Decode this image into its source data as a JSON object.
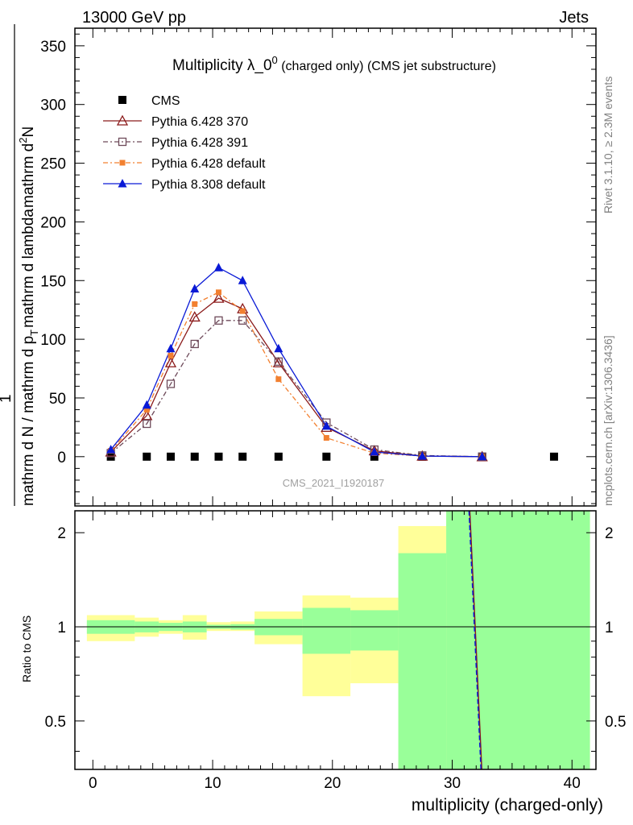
{
  "header": {
    "left": "13000 GeV pp",
    "right": "Jets"
  },
  "title": {
    "main": "Multiplicity λ_0",
    "sup": "0",
    "suffix": " (charged only) (CMS jet substructure)"
  },
  "watermark": "CMS_2021_I1920187",
  "side_labels": {
    "rivet": "Rivet 3.1.10, ≥ 2.3M events",
    "mcplots": "mcplots.cern.ch [arXiv:1306.3436]"
  },
  "ylabel_top": {
    "numer_pre": "1",
    "denom": "mathrm d N / mathrm d p",
    "denom_sub": "T",
    "denom_post": "mathrm d lambda",
    "numer_main": "mathrm d",
    "numer_sup": "2",
    "numer_N": "N",
    "numer_den": "mathrm d p",
    "numer_den_sub": "T",
    "numer_den_post": "mathrm d lambda"
  },
  "ylabel_ratio": "Ratio to CMS",
  "xlabel": "multiplicity (charged-only)",
  "colors": {
    "cms": "#000000",
    "p370": "#8b1a1a",
    "p391": "#6e4a5a",
    "p6def": "#f28030",
    "p8def": "#0a1ad6",
    "band_green": "#99ff99",
    "band_yellow": "#ffff99"
  },
  "chart_data": [
    {
      "type": "line",
      "xlim": [
        -1.5,
        42
      ],
      "ylim": [
        -42,
        365
      ],
      "yticks": [
        0,
        50,
        100,
        150,
        200,
        250,
        300,
        350
      ],
      "xticks": [
        0,
        10,
        20,
        30,
        40
      ],
      "legend_position": "top-left",
      "series": [
        {
          "name": "CMS",
          "marker": "square",
          "x": [
            1.5,
            4.5,
            6.5,
            8.5,
            10.5,
            12.5,
            15.5,
            19.5,
            23.5,
            27.5,
            32.5,
            38.5
          ],
          "y": [
            0,
            0,
            0,
            0,
            0,
            0,
            0,
            0,
            0,
            0,
            0,
            0
          ]
        },
        {
          "name": "Pythia 6.428 370",
          "marker": "open-triangle",
          "x": [
            1.5,
            4.5,
            6.5,
            8.5,
            10.5,
            12.5,
            15.5,
            19.5,
            23.5,
            27.5,
            32.5
          ],
          "y": [
            4,
            35,
            80,
            119,
            135,
            126,
            80,
            25,
            5,
            0.5,
            0
          ]
        },
        {
          "name": "Pythia 6.428 391",
          "marker": "open-square",
          "x": [
            1.5,
            4.5,
            6.5,
            8.5,
            10.5,
            12.5,
            15.5,
            19.5,
            23.5,
            27.5,
            32.5
          ],
          "y": [
            3,
            28,
            62,
            96,
            116,
            116,
            81,
            29,
            6,
            1,
            0
          ]
        },
        {
          "name": "Pythia 6.428 default",
          "marker": "filled-square",
          "x": [
            1.5,
            4.5,
            6.5,
            8.5,
            10.5,
            12.5,
            15.5,
            19.5,
            23.5,
            27.5,
            32.5
          ],
          "y": [
            5,
            40,
            86,
            130,
            140,
            124,
            66,
            16,
            3,
            0.5,
            0
          ]
        },
        {
          "name": "Pythia 8.308 default",
          "marker": "filled-triangle",
          "x": [
            1.5,
            4.5,
            6.5,
            8.5,
            10.5,
            12.5,
            15.5,
            19.5,
            23.5,
            27.5,
            32.5
          ],
          "y": [
            6,
            44,
            92,
            143,
            161,
            150,
            92,
            26,
            4,
            0.5,
            0
          ]
        }
      ]
    },
    {
      "type": "area",
      "ylabel": "Ratio to CMS",
      "xlabel": "multiplicity (charged-only)",
      "xlim": [
        -1.5,
        42
      ],
      "ylim": [
        0.35,
        2.35
      ],
      "yticks": [
        0.5,
        1,
        2
      ],
      "xticks": [
        0,
        10,
        20,
        30,
        40
      ],
      "bins": [
        {
          "lo": -0.5,
          "hi": 3.5,
          "yellow": [
            0.9,
            1.09
          ],
          "green": [
            0.95,
            1.05
          ]
        },
        {
          "lo": 3.5,
          "hi": 5.5,
          "yellow": [
            0.93,
            1.07
          ],
          "green": [
            0.96,
            1.04
          ]
        },
        {
          "lo": 5.5,
          "hi": 7.5,
          "yellow": [
            0.95,
            1.05
          ],
          "green": [
            0.97,
            1.03
          ]
        },
        {
          "lo": 7.5,
          "hi": 9.5,
          "yellow": [
            0.91,
            1.09
          ],
          "green": [
            0.96,
            1.04
          ]
        },
        {
          "lo": 9.5,
          "hi": 11.5,
          "yellow": [
            0.97,
            1.035
          ],
          "green": [
            0.985,
            1.015
          ]
        },
        {
          "lo": 11.5,
          "hi": 13.5,
          "yellow": [
            0.97,
            1.04
          ],
          "green": [
            0.98,
            1.02
          ]
        },
        {
          "lo": 13.5,
          "hi": 17.5,
          "yellow": [
            0.88,
            1.12
          ],
          "green": [
            0.94,
            1.06
          ]
        },
        {
          "lo": 17.5,
          "hi": 21.5,
          "yellow": [
            0.6,
            1.26
          ],
          "green": [
            0.82,
            1.15
          ]
        },
        {
          "lo": 21.5,
          "hi": 25.5,
          "yellow": [
            0.66,
            1.24
          ],
          "green": [
            0.84,
            1.13
          ]
        },
        {
          "lo": 25.5,
          "hi": 29.5,
          "yellow": [
            0.35,
            2.1
          ],
          "green": [
            0.35,
            1.72
          ]
        },
        {
          "lo": 29.5,
          "hi": 41.5,
          "yellow": [
            0.35,
            2.35
          ],
          "green": [
            0.35,
            2.35
          ]
        }
      ],
      "series": [
        {
          "name": "Pythia ratio",
          "x": [
            31.4,
            32.4
          ],
          "y": [
            2.35,
            0.35
          ]
        }
      ]
    }
  ]
}
